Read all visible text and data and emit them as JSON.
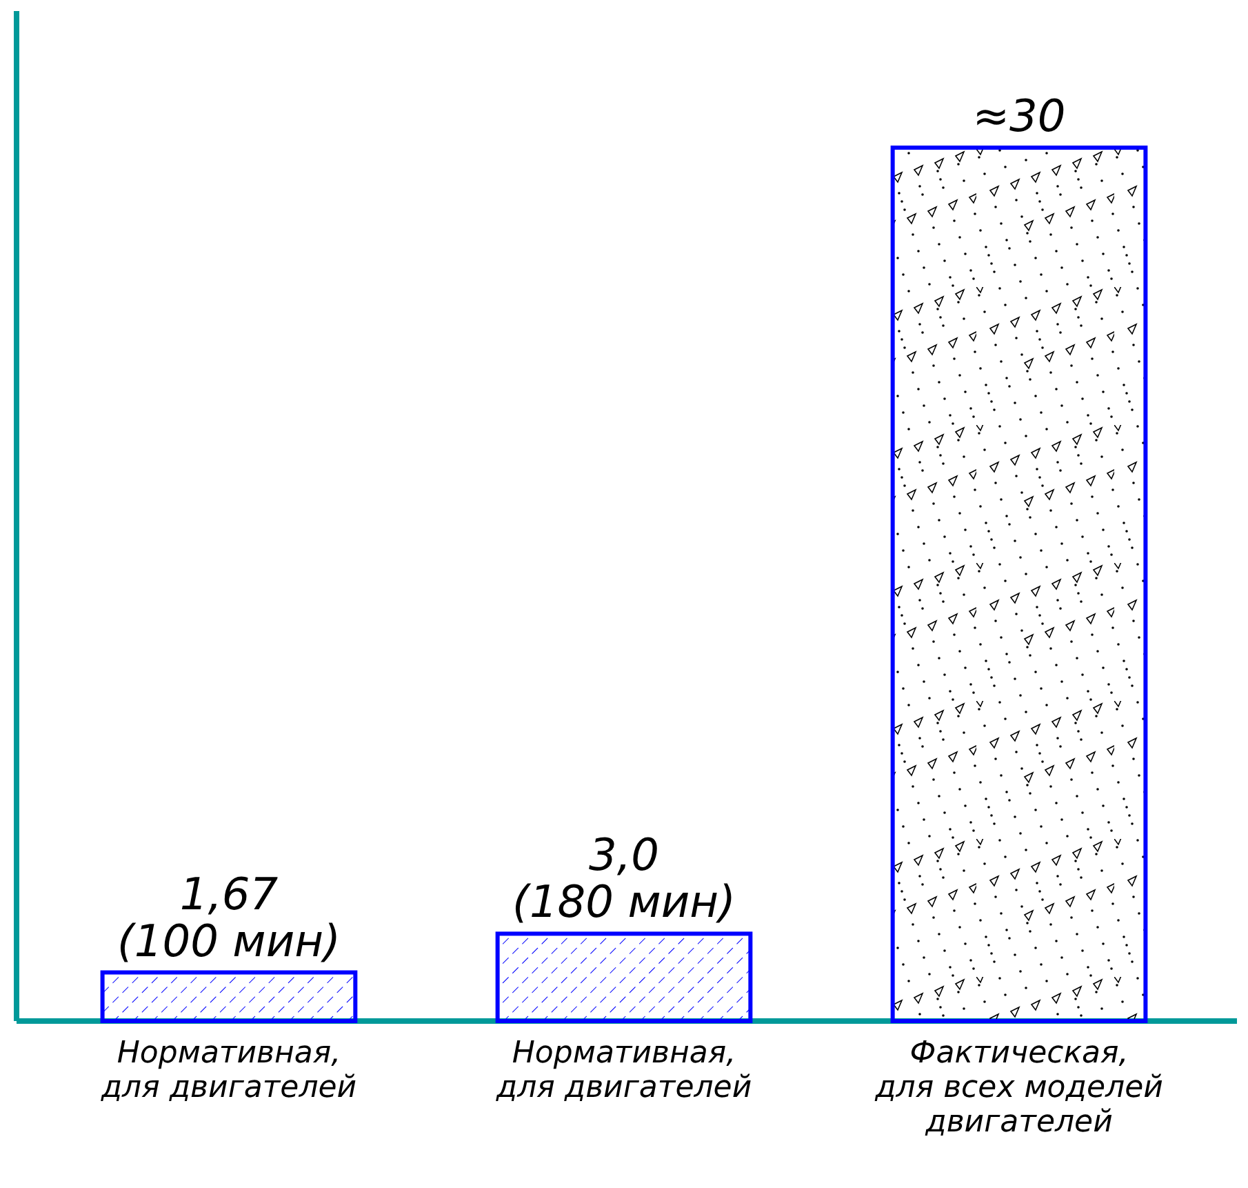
{
  "chart_data": {
    "type": "bar",
    "categories": [
      "Нормативная,\nдля двигателей",
      "Нормативная,\nдля двигателей",
      "Фактическая,\nдля всех моделей\nдвигателей"
    ],
    "values": [
      1.67,
      3.0,
      30
    ],
    "value_labels": [
      "1,67\n(100 мин)",
      "3,0\n(180 мин)",
      "≈30"
    ],
    "colors": [
      "#0000ff",
      "#0000ff",
      "#0000ff"
    ],
    "relative": false
  }
}
